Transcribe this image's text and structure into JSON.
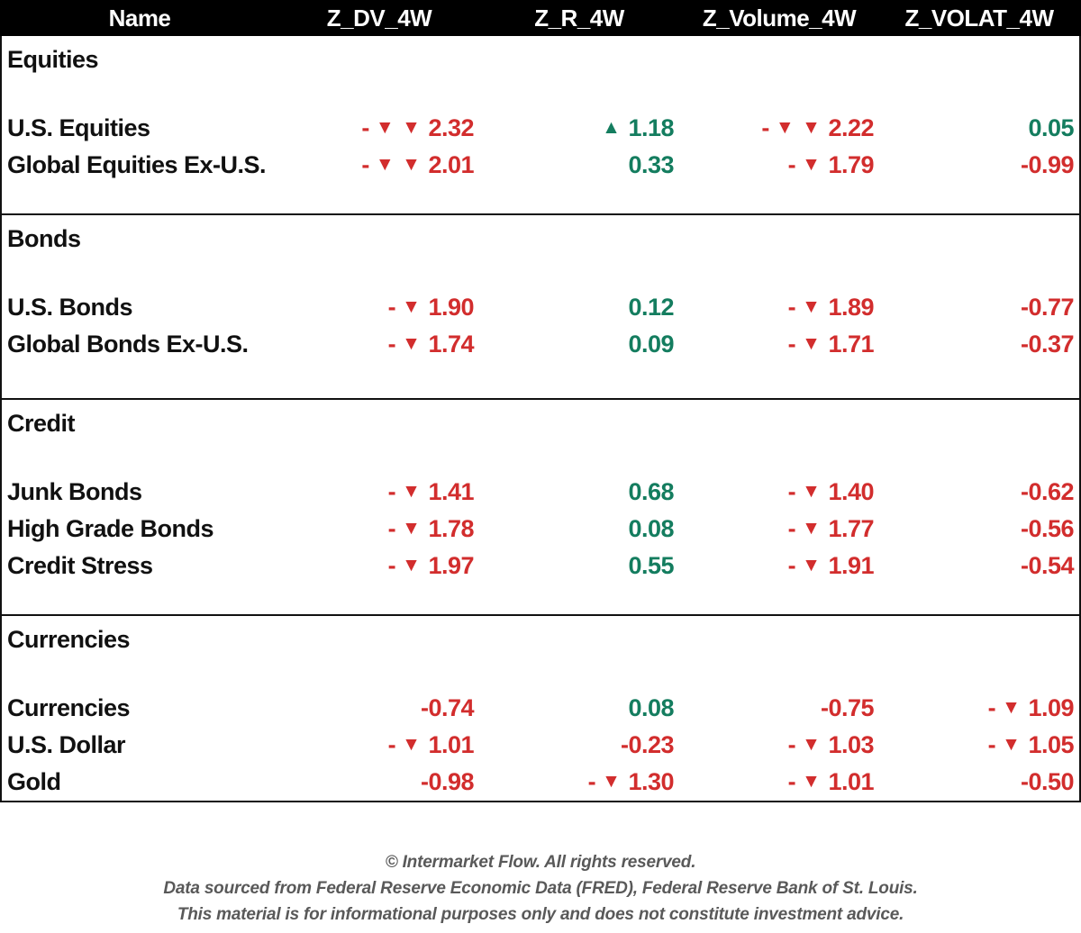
{
  "colors": {
    "negative_red": "#d22d2d",
    "positive_green": "#147d5f",
    "header_bg": "#000000",
    "header_text": "#ffffff",
    "footer_gray": "#595959"
  },
  "table": {
    "columns": [
      "Name",
      "Z_DV_4W",
      "Z_R_4W",
      "Z_Volume_4W",
      "Z_VOLAT_4W"
    ],
    "sections": [
      {
        "title": "Equities",
        "rows": [
          {
            "name": "U.S. Equities",
            "cells": [
              {
                "sign": "-",
                "arrows": [
                  "down",
                  "down"
                ],
                "value": "2.32",
                "color": "red"
              },
              {
                "sign": "",
                "arrows": [
                  "up"
                ],
                "value": "1.18",
                "color": "green"
              },
              {
                "sign": "-",
                "arrows": [
                  "down",
                  "down"
                ],
                "value": "2.22",
                "color": "red"
              },
              {
                "sign": "",
                "arrows": [],
                "value": "0.05",
                "color": "green"
              }
            ]
          },
          {
            "name": "Global Equities Ex-U.S.",
            "cells": [
              {
                "sign": "-",
                "arrows": [
                  "down",
                  "down"
                ],
                "value": "2.01",
                "color": "red"
              },
              {
                "sign": "",
                "arrows": [],
                "value": "0.33",
                "color": "green"
              },
              {
                "sign": "-",
                "arrows": [
                  "down"
                ],
                "value": "1.79",
                "color": "red"
              },
              {
                "sign": "",
                "arrows": [],
                "value": "-0.99",
                "color": "red"
              }
            ]
          }
        ]
      },
      {
        "title": "Bonds",
        "rows": [
          {
            "name": "U.S. Bonds",
            "cells": [
              {
                "sign": "-",
                "arrows": [
                  "down"
                ],
                "value": "1.90",
                "color": "red"
              },
              {
                "sign": "",
                "arrows": [],
                "value": "0.12",
                "color": "green"
              },
              {
                "sign": "-",
                "arrows": [
                  "down"
                ],
                "value": "1.89",
                "color": "red"
              },
              {
                "sign": "",
                "arrows": [],
                "value": "-0.77",
                "color": "red"
              }
            ]
          },
          {
            "name": "Global Bonds Ex-U.S.",
            "cells": [
              {
                "sign": "-",
                "arrows": [
                  "down"
                ],
                "value": "1.74",
                "color": "red"
              },
              {
                "sign": "",
                "arrows": [],
                "value": "0.09",
                "color": "green"
              },
              {
                "sign": "-",
                "arrows": [
                  "down"
                ],
                "value": "1.71",
                "color": "red"
              },
              {
                "sign": "",
                "arrows": [],
                "value": "-0.37",
                "color": "red"
              }
            ]
          }
        ]
      },
      {
        "title": "Credit",
        "rows": [
          {
            "name": "Junk Bonds",
            "cells": [
              {
                "sign": "-",
                "arrows": [
                  "down"
                ],
                "value": "1.41",
                "color": "red"
              },
              {
                "sign": "",
                "arrows": [],
                "value": "0.68",
                "color": "green"
              },
              {
                "sign": "-",
                "arrows": [
                  "down"
                ],
                "value": "1.40",
                "color": "red"
              },
              {
                "sign": "",
                "arrows": [],
                "value": "-0.62",
                "color": "red"
              }
            ]
          },
          {
            "name": "High Grade Bonds",
            "cells": [
              {
                "sign": "-",
                "arrows": [
                  "down"
                ],
                "value": "1.78",
                "color": "red"
              },
              {
                "sign": "",
                "arrows": [],
                "value": "0.08",
                "color": "green"
              },
              {
                "sign": "-",
                "arrows": [
                  "down"
                ],
                "value": "1.77",
                "color": "red"
              },
              {
                "sign": "",
                "arrows": [],
                "value": "-0.56",
                "color": "red"
              }
            ]
          },
          {
            "name": "Credit Stress",
            "cells": [
              {
                "sign": "-",
                "arrows": [
                  "down"
                ],
                "value": "1.97",
                "color": "red"
              },
              {
                "sign": "",
                "arrows": [],
                "value": "0.55",
                "color": "green"
              },
              {
                "sign": "-",
                "arrows": [
                  "down"
                ],
                "value": "1.91",
                "color": "red"
              },
              {
                "sign": "",
                "arrows": [],
                "value": "-0.54",
                "color": "red"
              }
            ]
          }
        ]
      },
      {
        "title": "Currencies",
        "rows": [
          {
            "name": "Currencies",
            "cells": [
              {
                "sign": "",
                "arrows": [],
                "value": "-0.74",
                "color": "red"
              },
              {
                "sign": "",
                "arrows": [],
                "value": "0.08",
                "color": "green"
              },
              {
                "sign": "",
                "arrows": [],
                "value": "-0.75",
                "color": "red"
              },
              {
                "sign": "-",
                "arrows": [
                  "down"
                ],
                "value": "1.09",
                "color": "red"
              }
            ]
          },
          {
            "name": "U.S. Dollar",
            "cells": [
              {
                "sign": "-",
                "arrows": [
                  "down"
                ],
                "value": "1.01",
                "color": "red"
              },
              {
                "sign": "",
                "arrows": [],
                "value": "-0.23",
                "color": "red"
              },
              {
                "sign": "-",
                "arrows": [
                  "down"
                ],
                "value": "1.03",
                "color": "red"
              },
              {
                "sign": "-",
                "arrows": [
                  "down"
                ],
                "value": "1.05",
                "color": "red"
              }
            ]
          },
          {
            "name": "Gold",
            "cells": [
              {
                "sign": "",
                "arrows": [],
                "value": "-0.98",
                "color": "red"
              },
              {
                "sign": "-",
                "arrows": [
                  "down"
                ],
                "value": "1.30",
                "color": "red"
              },
              {
                "sign": "-",
                "arrows": [
                  "down"
                ],
                "value": "1.01",
                "color": "red"
              },
              {
                "sign": "",
                "arrows": [],
                "value": "-0.50",
                "color": "red"
              }
            ]
          }
        ]
      }
    ]
  },
  "chart_data": {
    "type": "table",
    "title": "",
    "columns": [
      "Name",
      "Z_DV_4W",
      "Z_R_4W",
      "Z_Volume_4W",
      "Z_VOLAT_4W"
    ],
    "rows": [
      {
        "section": "Equities",
        "name": "U.S. Equities",
        "Z_DV_4W": -2.32,
        "Z_R_4W": 1.18,
        "Z_Volume_4W": -2.22,
        "Z_VOLAT_4W": 0.05
      },
      {
        "section": "Equities",
        "name": "Global Equities Ex-U.S.",
        "Z_DV_4W": -2.01,
        "Z_R_4W": 0.33,
        "Z_Volume_4W": -1.79,
        "Z_VOLAT_4W": -0.99
      },
      {
        "section": "Bonds",
        "name": "U.S. Bonds",
        "Z_DV_4W": -1.9,
        "Z_R_4W": 0.12,
        "Z_Volume_4W": -1.89,
        "Z_VOLAT_4W": -0.77
      },
      {
        "section": "Bonds",
        "name": "Global Bonds Ex-U.S.",
        "Z_DV_4W": -1.74,
        "Z_R_4W": 0.09,
        "Z_Volume_4W": -1.71,
        "Z_VOLAT_4W": -0.37
      },
      {
        "section": "Credit",
        "name": "Junk Bonds",
        "Z_DV_4W": -1.41,
        "Z_R_4W": 0.68,
        "Z_Volume_4W": -1.4,
        "Z_VOLAT_4W": -0.62
      },
      {
        "section": "Credit",
        "name": "High Grade Bonds",
        "Z_DV_4W": -1.78,
        "Z_R_4W": 0.08,
        "Z_Volume_4W": -1.77,
        "Z_VOLAT_4W": -0.56
      },
      {
        "section": "Credit",
        "name": "Credit Stress",
        "Z_DV_4W": -1.97,
        "Z_R_4W": 0.55,
        "Z_Volume_4W": -1.91,
        "Z_VOLAT_4W": -0.54
      },
      {
        "section": "Currencies",
        "name": "Currencies",
        "Z_DV_4W": -0.74,
        "Z_R_4W": 0.08,
        "Z_Volume_4W": -0.75,
        "Z_VOLAT_4W": -1.09
      },
      {
        "section": "Currencies",
        "name": "U.S. Dollar",
        "Z_DV_4W": -1.01,
        "Z_R_4W": -0.23,
        "Z_Volume_4W": -1.03,
        "Z_VOLAT_4W": -1.05
      },
      {
        "section": "Currencies",
        "name": "Gold",
        "Z_DV_4W": -0.98,
        "Z_R_4W": -1.3,
        "Z_Volume_4W": -1.01,
        "Z_VOLAT_4W": -0.5
      }
    ],
    "legend": "red down-triangle = negative z-score beyond threshold, green up-triangle = positive z-score beyond threshold"
  },
  "footer": {
    "lines": [
      "© Intermarket Flow. All rights reserved.",
      "Data sourced from Federal Reserve Economic Data (FRED), Federal Reserve Bank of St. Louis.",
      "This material is for informational purposes only and does not constitute investment advice."
    ]
  }
}
